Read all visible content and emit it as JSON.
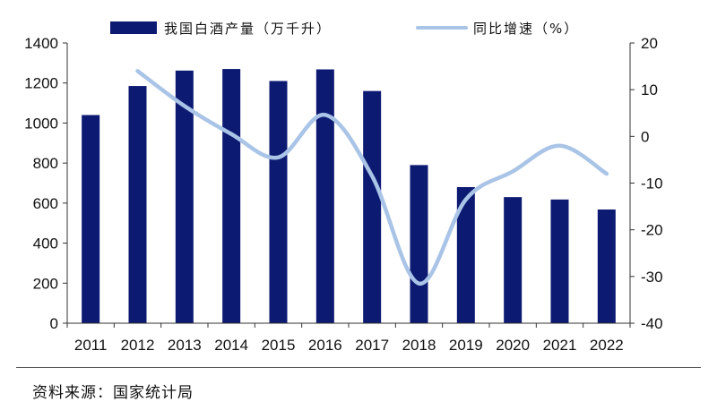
{
  "chart_data": {
    "type": "bar+line",
    "categories": [
      "2011",
      "2012",
      "2013",
      "2014",
      "2015",
      "2016",
      "2017",
      "2018",
      "2019",
      "2020",
      "2021",
      "2022"
    ],
    "series": [
      {
        "name": "我国白酒产量（万千升）",
        "type": "bar",
        "axis": "left",
        "color": "#0d1a72",
        "values": [
          1040,
          1185,
          1262,
          1270,
          1210,
          1268,
          1160,
          790,
          680,
          630,
          618,
          568
        ]
      },
      {
        "name": "同比增速（%）",
        "type": "line",
        "axis": "right",
        "color": "#a9c4e6",
        "values": [
          null,
          14,
          6.5,
          0.5,
          -4.5,
          4.6,
          -8.5,
          -31.5,
          -13.5,
          -7.5,
          -2,
          -8
        ]
      }
    ],
    "y_left": {
      "min": 0,
      "max": 1400,
      "ticks": [
        0,
        200,
        400,
        600,
        800,
        1000,
        1200,
        1400
      ]
    },
    "y_right": {
      "min": -40,
      "max": 20,
      "ticks": [
        -40,
        -30,
        -20,
        -10,
        0,
        10,
        20
      ]
    },
    "legend_position": "top-center",
    "grid": false
  },
  "source_text": "资料来源：国家统计局"
}
